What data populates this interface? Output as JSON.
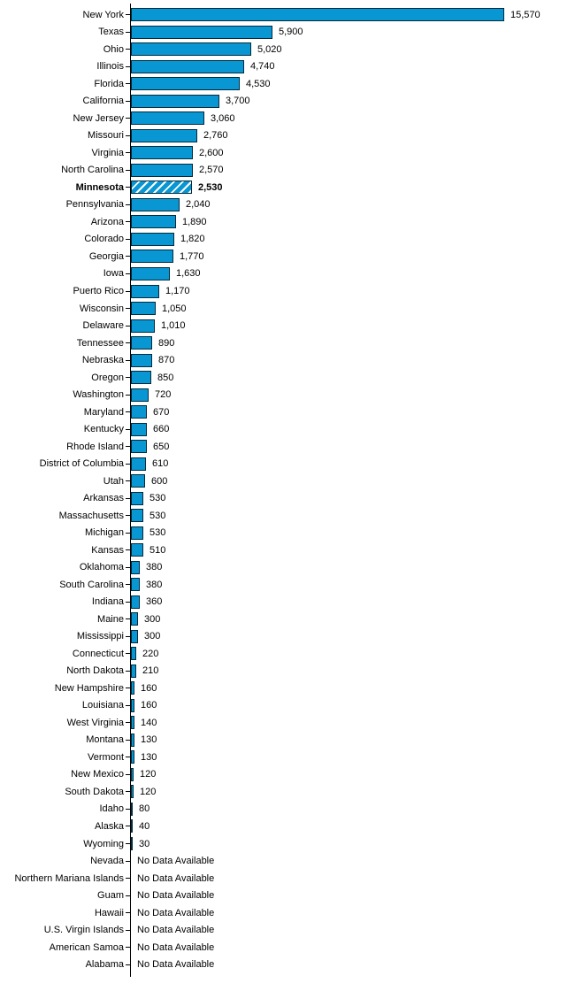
{
  "chart_data": {
    "type": "bar",
    "orientation": "horizontal",
    "title": "",
    "xlabel": "",
    "ylabel": "",
    "xlim": [
      0,
      15570
    ],
    "grid": false,
    "legend": null,
    "bar_color": "#0997d4",
    "bar_border_color": "#002b3d",
    "hatch_color": "#ffffff",
    "highlight_index": 10,
    "highlight_category": "Minnesota",
    "highlight_style": "diagonal-hatch",
    "no_data_label": "No Data Available",
    "categories": [
      "New York",
      "Texas",
      "Ohio",
      "Illinois",
      "Florida",
      "California",
      "New Jersey",
      "Missouri",
      "Virginia",
      "North Carolina",
      "Minnesota",
      "Pennsylvania",
      "Arizona",
      "Colorado",
      "Georgia",
      "Iowa",
      "Puerto Rico",
      "Wisconsin",
      "Delaware",
      "Tennessee",
      "Nebraska",
      "Oregon",
      "Washington",
      "Maryland",
      "Kentucky",
      "Rhode Island",
      "District of Columbia",
      "Utah",
      "Arkansas",
      "Massachusetts",
      "Michigan",
      "Kansas",
      "Oklahoma",
      "South Carolina",
      "Indiana",
      "Maine",
      "Mississippi",
      "Connecticut",
      "North Dakota",
      "New Hampshire",
      "Louisiana",
      "West Virginia",
      "Montana",
      "Vermont",
      "New Mexico",
      "South Dakota",
      "Idaho",
      "Alaska",
      "Wyoming",
      "Nevada",
      "Northern Mariana Islands",
      "Guam",
      "Hawaii",
      "U.S. Virgin Islands",
      "American Samoa",
      "Alabama"
    ],
    "values": [
      15570,
      5900,
      5020,
      4740,
      4530,
      3700,
      3060,
      2760,
      2600,
      2570,
      2530,
      2040,
      1890,
      1820,
      1770,
      1630,
      1170,
      1050,
      1010,
      890,
      870,
      850,
      720,
      670,
      660,
      650,
      610,
      600,
      530,
      530,
      530,
      510,
      380,
      380,
      360,
      300,
      300,
      220,
      210,
      160,
      160,
      140,
      130,
      130,
      120,
      120,
      80,
      40,
      30,
      null,
      null,
      null,
      null,
      null,
      null,
      null
    ],
    "value_labels": [
      "15,570",
      "5,900",
      "5,020",
      "4,740",
      "4,530",
      "3,700",
      "3,060",
      "2,760",
      "2,600",
      "2,570",
      "2,530",
      "2,040",
      "1,890",
      "1,820",
      "1,770",
      "1,630",
      "1,170",
      "1,050",
      "1,010",
      "890",
      "870",
      "850",
      "720",
      "670",
      "660",
      "650",
      "610",
      "600",
      "530",
      "530",
      "530",
      "510",
      "380",
      "380",
      "360",
      "300",
      "300",
      "220",
      "210",
      "160",
      "160",
      "140",
      "130",
      "130",
      "120",
      "120",
      "80",
      "40",
      "30",
      "No Data Available",
      "No Data Available",
      "No Data Available",
      "No Data Available",
      "No Data Available",
      "No Data Available",
      "No Data Available"
    ]
  }
}
